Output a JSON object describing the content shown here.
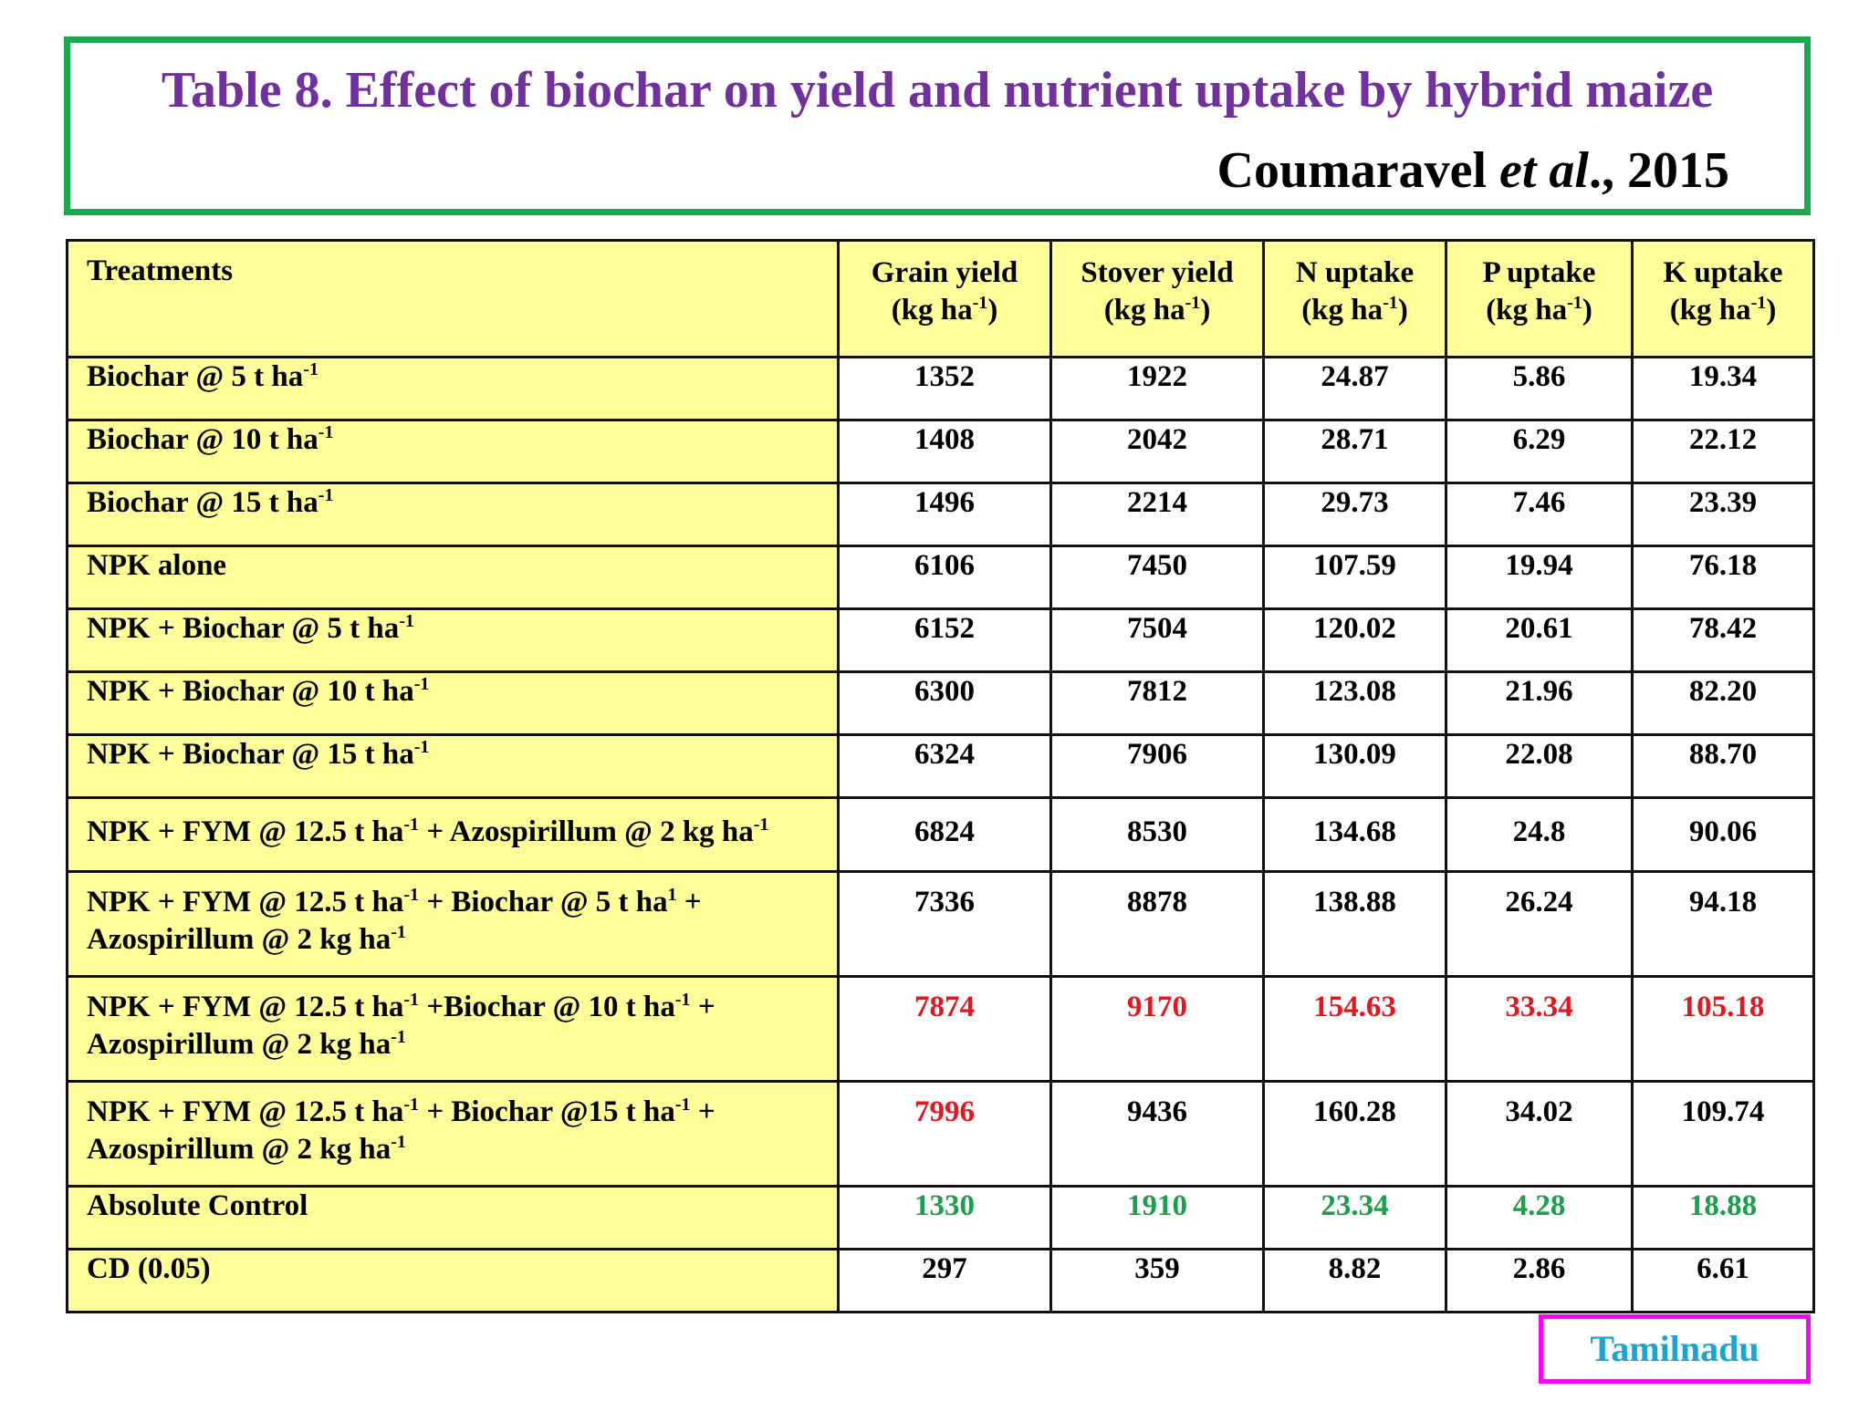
{
  "title": "Table 8. Effect of biochar on yield and nutrient uptake by hybrid maize",
  "citation": {
    "author": "Coumaravel ",
    "etal": "et al",
    "year": "., 2015"
  },
  "columns": [
    {
      "name": "Treatments"
    },
    {
      "name": "Grain  yield",
      "unit_pre": "(kg ha",
      "unit_sup": "-1",
      "unit_post": ")"
    },
    {
      "name": "Stover yield",
      "unit_pre": "(kg ha",
      "unit_sup": "-1",
      "unit_post": ")"
    },
    {
      "name": "N uptake",
      "unit_pre": "(kg ha",
      "unit_sup": "-1",
      "unit_post": ")"
    },
    {
      "name": "P uptake",
      "unit_pre": "(kg ha",
      "unit_sup": "-1",
      "unit_post": ")"
    },
    {
      "name": "K uptake",
      "unit_pre": "(kg ha",
      "unit_sup": "-1",
      "unit_post": ")"
    }
  ],
  "rows": [
    {
      "t": [
        "Biochar @ 5 t ha",
        "-1"
      ],
      "v": [
        "1352",
        "1922",
        "24.87",
        "5.86",
        "19.34"
      ]
    },
    {
      "t": [
        "Biochar @ 10 t ha",
        "-1"
      ],
      "v": [
        "1408",
        "2042",
        "28.71",
        "6.29",
        "22.12"
      ]
    },
    {
      "t": [
        "Biochar @ 15 t ha",
        "-1"
      ],
      "v": [
        "1496",
        "2214",
        "29.73",
        "7.46",
        "23.39"
      ]
    },
    {
      "t": [
        "NPK alone"
      ],
      "v": [
        "6106",
        "7450",
        "107.59",
        "19.94",
        "76.18"
      ]
    },
    {
      "t": [
        "NPK +  Biochar @ 5 t ha",
        "-1"
      ],
      "v": [
        "6152",
        "7504",
        "120.02",
        "20.61",
        "78.42"
      ]
    },
    {
      "t": [
        "NPK + Biochar @ 10 t  ha",
        "-1"
      ],
      "v": [
        "6300",
        "7812",
        "123.08",
        "21.96",
        "82.20"
      ]
    },
    {
      "t": [
        "NPK + Biochar @ 15 t  ha",
        "-1"
      ],
      "v": [
        "6324",
        "7906",
        "130.09",
        "22.08",
        "88.70"
      ]
    },
    {
      "t": [
        "NPK + FYM @ 12.5 t  ha",
        "-1",
        " + Azospirillum @ 2 kg  ha",
        "-1"
      ],
      "v": [
        "6824",
        "8530",
        "134.68",
        "24.8",
        "90.06"
      ]
    },
    {
      "t": [
        "NPK + FYM @ 12.5 t ha",
        "-1",
        " + Biochar @ 5 t ha",
        "1",
        " +",
        "Azospirillum @ 2 kg ha",
        "-1"
      ],
      "v": [
        "7336",
        "8878",
        "138.88",
        "26.24",
        "94.18"
      ]
    },
    {
      "t": [
        "NPK + FYM @ 12.5 t ha",
        "-1",
        " +Biochar @ 10 t ha",
        "-1",
        "  +",
        "Azospirillum @ 2 kg ha",
        "-1"
      ],
      "v": [
        "7874",
        "9170",
        "154.63",
        "33.34",
        "105.18"
      ]
    },
    {
      "t": [
        "NPK + FYM @ 12.5 t ha",
        "-1",
        " + Biochar @15 t ha",
        "-1",
        " +",
        "Azospirillum @ 2 kg ha",
        "-1"
      ],
      "v": [
        "7996",
        "9436",
        "160.28",
        "34.02",
        "109.74"
      ]
    },
    {
      "t": [
        "Absolute Control"
      ],
      "v": [
        "1330",
        "1910",
        "23.34",
        "4.28",
        "18.88"
      ]
    },
    {
      "t": [
        "CD (0.05)"
      ],
      "v": [
        "297",
        "359",
        "8.82",
        "2.86",
        "6.61"
      ]
    }
  ],
  "highlight_colors": {
    "red": "#e8161c",
    "green": "#18a04a",
    "title": "#7030a0",
    "region": "#1aa3d6"
  },
  "region_label": "Tamilnadu"
}
